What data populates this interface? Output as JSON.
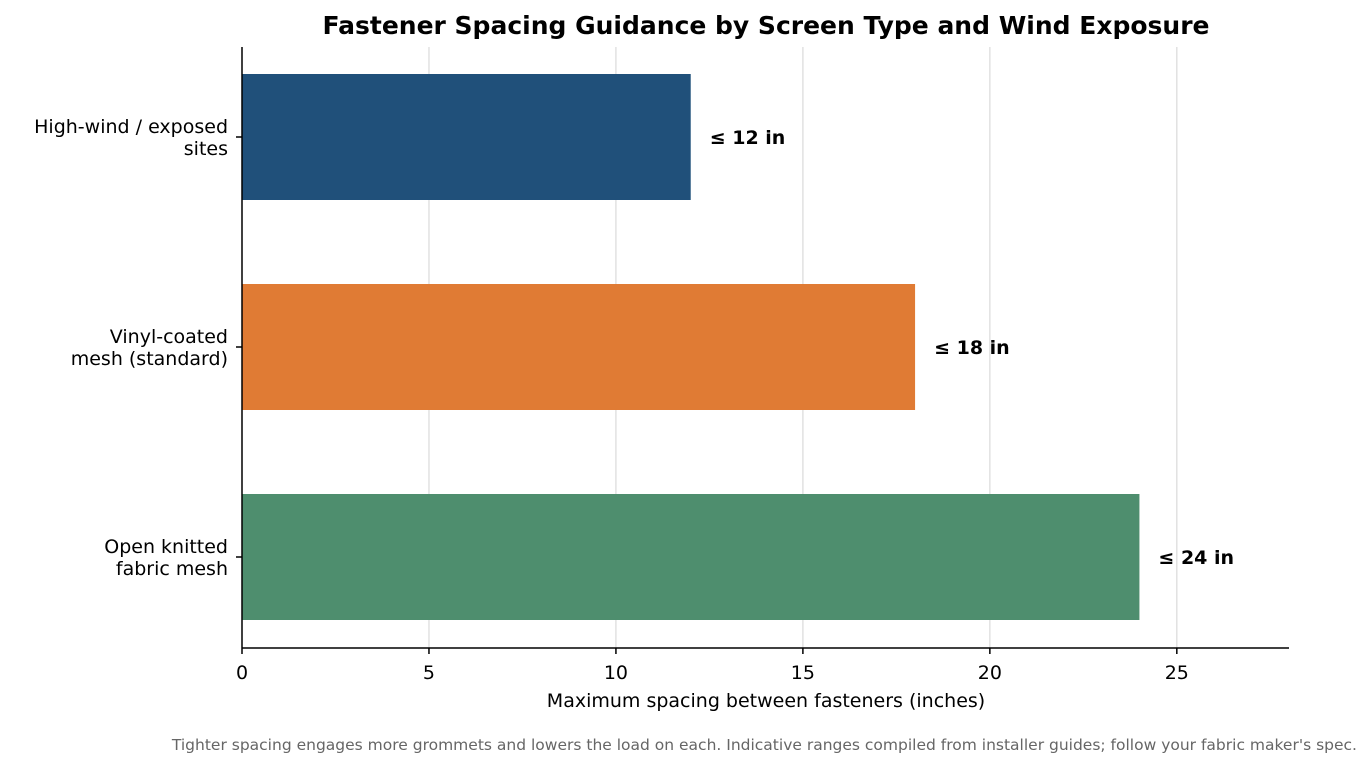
{
  "chart_data": {
    "type": "bar",
    "orientation": "horizontal",
    "title": "Fastener Spacing Guidance by Screen Type and Wind Exposure",
    "xlabel": "Maximum spacing between fasteners (inches)",
    "ylabel": "",
    "xlim": [
      0,
      28
    ],
    "xticks": [
      0,
      5,
      10,
      15,
      20,
      25
    ],
    "grid": "vertical",
    "categories": [
      [
        "High-wind / exposed",
        "sites"
      ],
      [
        "Vinyl-coated",
        "mesh (standard)"
      ],
      [
        "Open knitted",
        "fabric mesh"
      ]
    ],
    "values": [
      12,
      18,
      24
    ],
    "data_labels": [
      "≤ 12 in",
      "≤ 18 in",
      "≤ 24 in"
    ],
    "colors": [
      "#20507a",
      "#e07b34",
      "#4e8e6e"
    ],
    "footnote": "Tighter spacing engages more grommets and lowers the load on each. Indicative ranges compiled from installer guides; follow your fabric maker's spec."
  }
}
